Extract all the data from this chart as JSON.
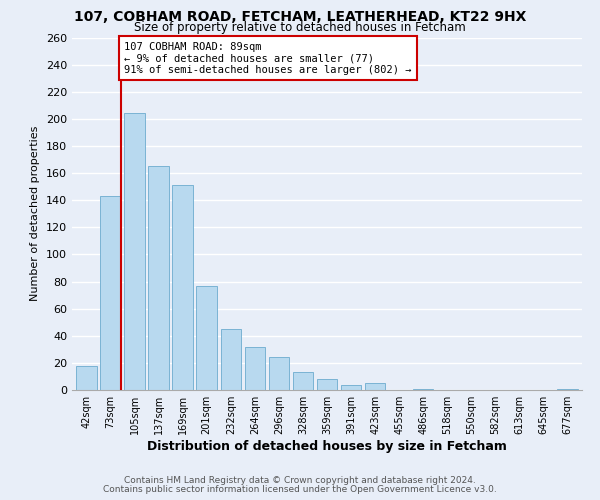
{
  "title1": "107, COBHAM ROAD, FETCHAM, LEATHERHEAD, KT22 9HX",
  "title2": "Size of property relative to detached houses in Fetcham",
  "xlabel": "Distribution of detached houses by size in Fetcham",
  "ylabel": "Number of detached properties",
  "bar_labels": [
    "42sqm",
    "73sqm",
    "105sqm",
    "137sqm",
    "169sqm",
    "201sqm",
    "232sqm",
    "264sqm",
    "296sqm",
    "328sqm",
    "359sqm",
    "391sqm",
    "423sqm",
    "455sqm",
    "486sqm",
    "518sqm",
    "550sqm",
    "582sqm",
    "613sqm",
    "645sqm",
    "677sqm"
  ],
  "bar_heights": [
    18,
    143,
    204,
    165,
    151,
    77,
    45,
    32,
    24,
    13,
    8,
    4,
    5,
    0,
    1,
    0,
    0,
    0,
    0,
    0,
    1
  ],
  "bar_color": "#b8d9ef",
  "bar_edge_color": "#7ab3d4",
  "highlight_line_color": "#cc0000",
  "annotation_title": "107 COBHAM ROAD: 89sqm",
  "annotation_line1": "← 9% of detached houses are smaller (77)",
  "annotation_line2": "91% of semi-detached houses are larger (802) →",
  "annotation_box_edge": "#cc0000",
  "ylim": [
    0,
    260
  ],
  "yticks": [
    0,
    20,
    40,
    60,
    80,
    100,
    120,
    140,
    160,
    180,
    200,
    220,
    240,
    260
  ],
  "footer1": "Contains HM Land Registry data © Crown copyright and database right 2024.",
  "footer2": "Contains public sector information licensed under the Open Government Licence v3.0.",
  "bg_color": "#e8eef8",
  "plot_bg_color": "#e8eef8",
  "grid_color": "#ffffff"
}
